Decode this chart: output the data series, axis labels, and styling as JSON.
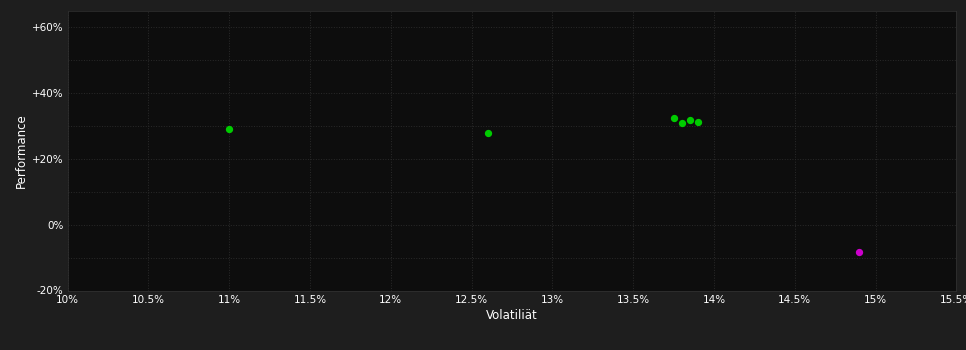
{
  "background_color": "#1e1e1e",
  "plot_bg_color": "#0d0d0d",
  "grid_color": "#2a2a2a",
  "grid_linestyle": ":",
  "text_color": "#ffffff",
  "xlabel": "Volatiliät",
  "ylabel": "Performance",
  "xlim": [
    0.1,
    0.155
  ],
  "ylim": [
    -0.2,
    0.65
  ],
  "xticks": [
    0.1,
    0.105,
    0.11,
    0.115,
    0.12,
    0.125,
    0.13,
    0.135,
    0.14,
    0.145,
    0.15,
    0.155
  ],
  "yticks": [
    -0.2,
    -0.1,
    0.0,
    0.1,
    0.2,
    0.3,
    0.4,
    0.5,
    0.6
  ],
  "ytick_labels": [
    "-20%",
    "",
    "0%",
    "",
    "+20%",
    "",
    "+40%",
    "",
    "+60%"
  ],
  "xtick_labels": [
    "10%",
    "10.5%",
    "11%",
    "11.5%",
    "12%",
    "12.5%",
    "13%",
    "13.5%",
    "14%",
    "14.5%",
    "15%",
    "15.5%"
  ],
  "green_points": [
    [
      0.11,
      0.29
    ],
    [
      0.126,
      0.278
    ],
    [
      0.1375,
      0.325
    ],
    [
      0.1385,
      0.318
    ],
    [
      0.138,
      0.308
    ],
    [
      0.139,
      0.313
    ]
  ],
  "magenta_points": [
    [
      0.149,
      -0.083
    ]
  ],
  "green_color": "#00cc00",
  "magenta_color": "#cc00cc",
  "point_size": 18
}
